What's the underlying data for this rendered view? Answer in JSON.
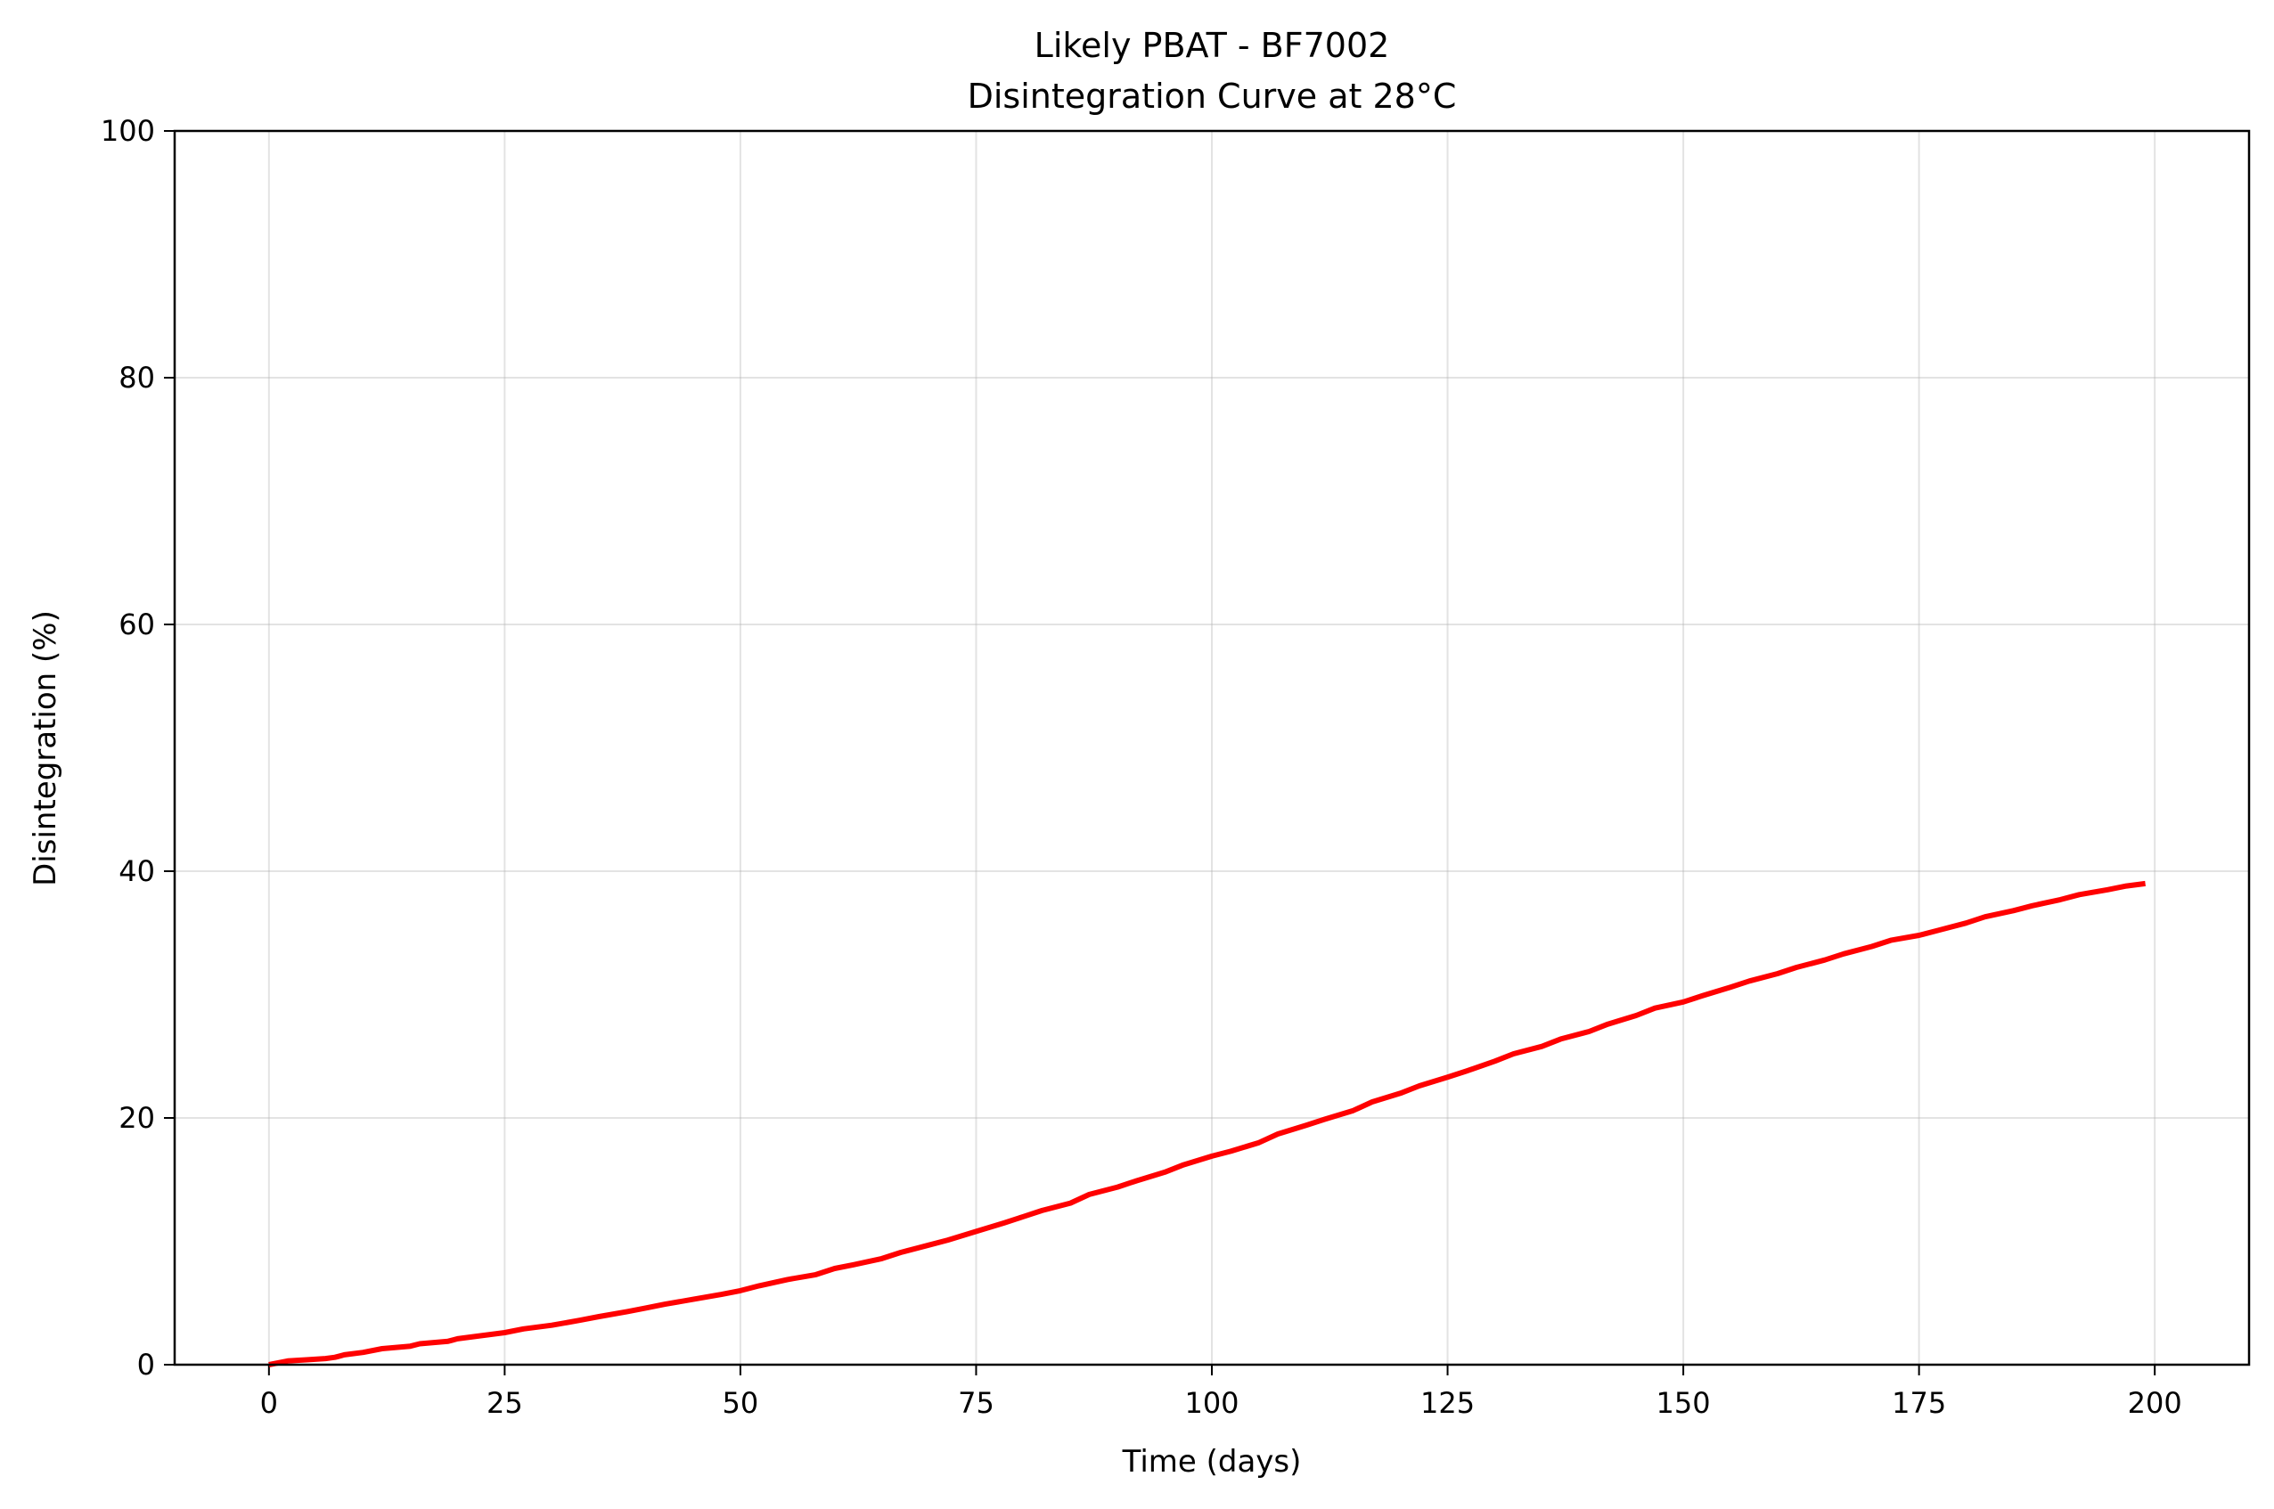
{
  "chart_data": {
    "type": "line",
    "title_line1": "Likely PBAT - BF7002",
    "title_line2": "Disintegration Curve at 28°C",
    "xlabel": "Time (days)",
    "ylabel": "Disintegration (%)",
    "xlim": [
      -10,
      210
    ],
    "ylim": [
      0,
      100
    ],
    "xticks": [
      0,
      25,
      50,
      75,
      100,
      125,
      150,
      175,
      200
    ],
    "yticks": [
      0,
      20,
      40,
      60,
      80,
      100
    ],
    "grid": true,
    "series": [
      {
        "color": "#ff0000",
        "x": [
          0,
          2,
          4,
          6,
          7,
          8,
          10,
          12,
          15,
          16,
          19,
          20,
          22,
          25,
          27,
          30,
          33,
          35,
          38,
          40,
          42,
          45,
          48,
          50,
          52,
          55,
          58,
          60,
          62,
          65,
          67,
          70,
          72,
          75,
          78,
          80,
          82,
          85,
          87,
          90,
          92,
          95,
          97,
          100,
          102,
          105,
          107,
          110,
          112,
          115,
          117,
          120,
          122,
          125,
          127,
          130,
          132,
          135,
          137,
          140,
          142,
          145,
          147,
          150,
          152,
          155,
          157,
          160,
          162,
          165,
          167,
          170,
          172,
          175,
          177,
          180,
          182,
          185,
          187,
          190,
          192,
          195,
          197,
          199
        ],
        "y": [
          0.0,
          0.3,
          0.4,
          0.5,
          0.6,
          0.8,
          1.0,
          1.3,
          1.5,
          1.7,
          1.9,
          2.1,
          2.3,
          2.6,
          2.9,
          3.2,
          3.6,
          3.9,
          4.3,
          4.6,
          4.9,
          5.3,
          5.7,
          6.0,
          6.4,
          6.9,
          7.3,
          7.8,
          8.1,
          8.6,
          9.1,
          9.7,
          10.1,
          10.8,
          11.5,
          12.0,
          12.5,
          13.1,
          13.8,
          14.4,
          14.9,
          15.6,
          16.2,
          16.9,
          17.3,
          18.0,
          18.7,
          19.4,
          19.9,
          20.6,
          21.3,
          22.0,
          22.6,
          23.3,
          23.8,
          24.6,
          25.2,
          25.8,
          26.4,
          27.0,
          27.6,
          28.3,
          28.9,
          29.4,
          29.9,
          30.6,
          31.1,
          31.7,
          32.2,
          32.8,
          33.3,
          33.9,
          34.4,
          34.8,
          35.2,
          35.8,
          36.3,
          36.8,
          37.2,
          37.7,
          38.1,
          38.5,
          38.8,
          39.0
        ]
      }
    ]
  }
}
